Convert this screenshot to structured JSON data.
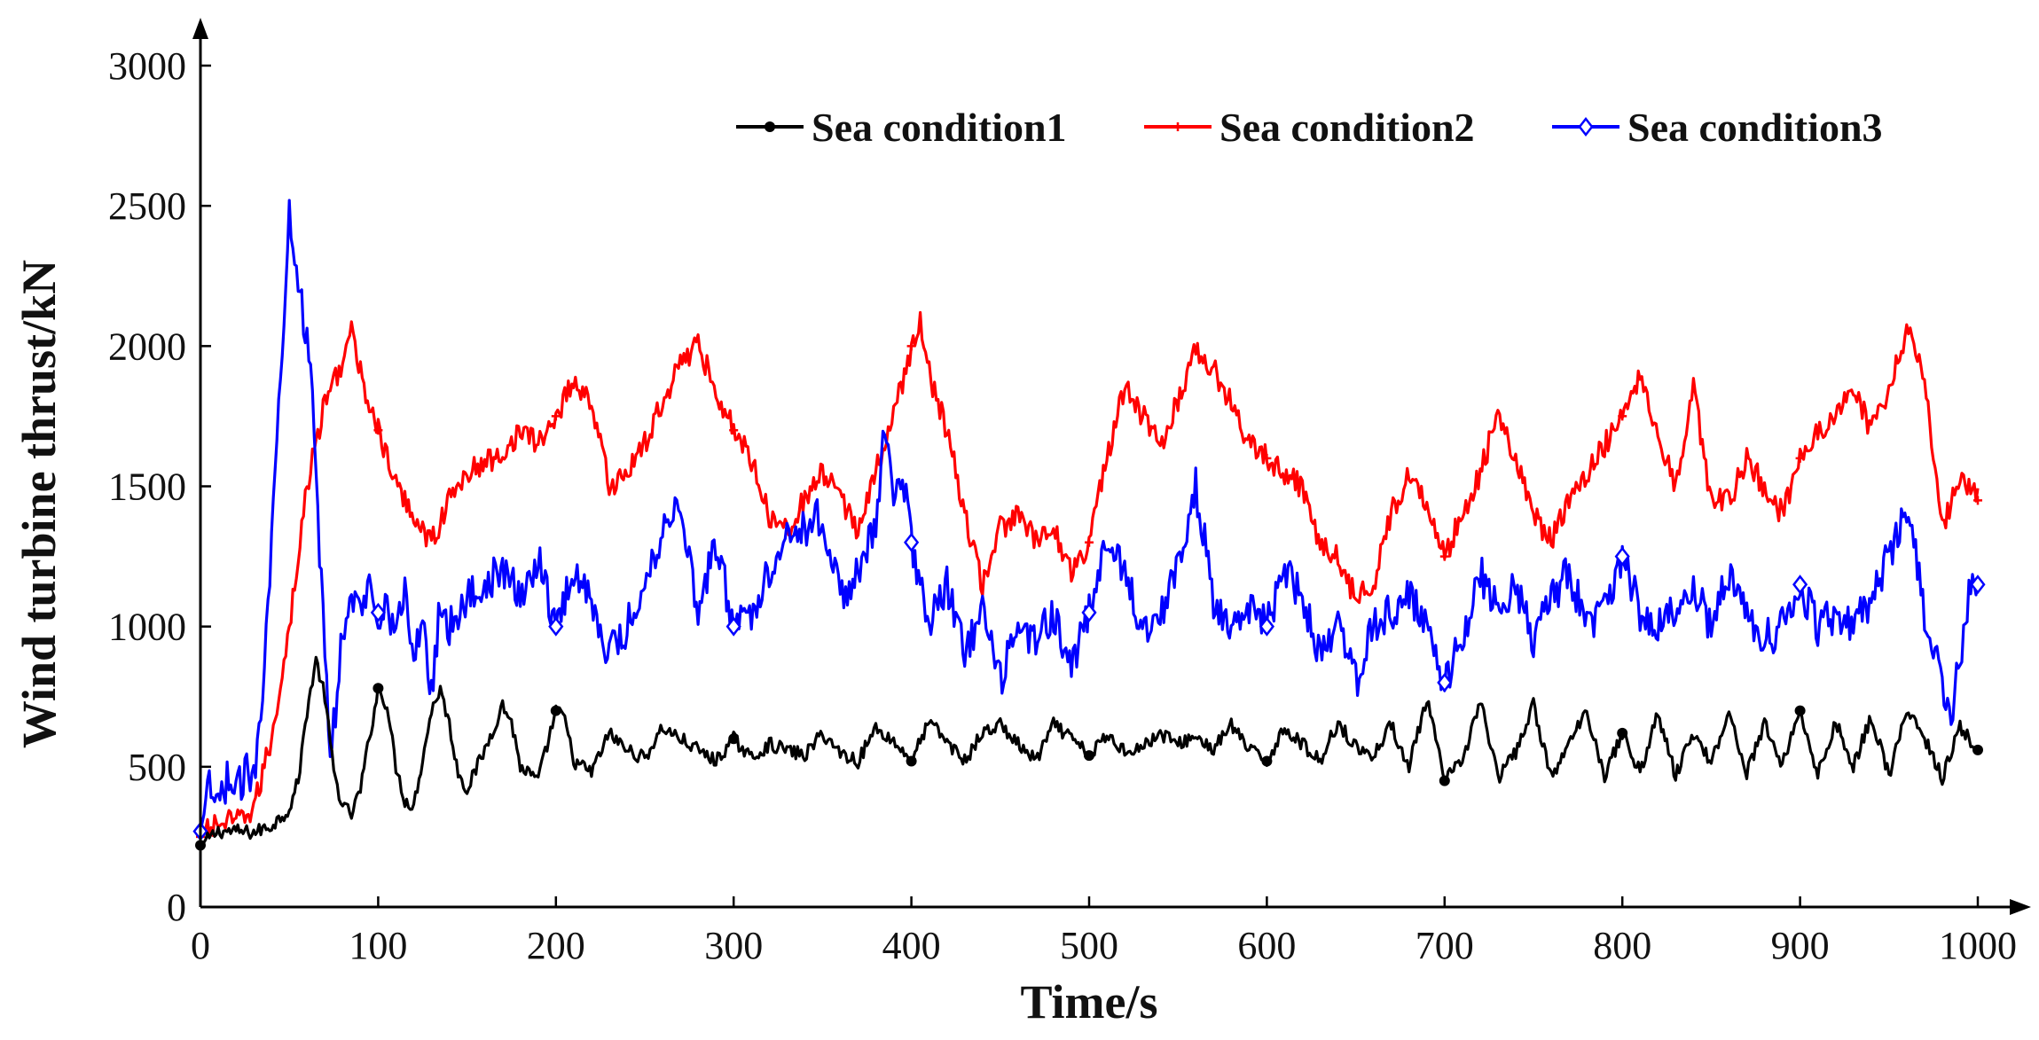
{
  "chart_data": {
    "type": "line",
    "title": "",
    "xlabel": "Time/s",
    "ylabel": "Wind turbine thrust/kN",
    "xlim": [
      0,
      1000
    ],
    "ylim": [
      0,
      3000
    ],
    "x_ticks": [
      0,
      100,
      200,
      300,
      400,
      500,
      600,
      700,
      800,
      900,
      1000
    ],
    "y_ticks": [
      0,
      500,
      1000,
      1500,
      2000,
      2500,
      3000
    ],
    "grid": false,
    "legend_position": "top-right",
    "series": [
      {
        "name": "Sea condition1",
        "color": "#000000",
        "marker": "circle",
        "noise": 25,
        "x": [
          0,
          10,
          20,
          30,
          40,
          50,
          55,
          60,
          65,
          70,
          75,
          80,
          85,
          90,
          100,
          105,
          110,
          115,
          120,
          130,
          135,
          140,
          145,
          150,
          160,
          170,
          175,
          180,
          190,
          200,
          205,
          210,
          220,
          230,
          240,
          250,
          260,
          270,
          280,
          290,
          300,
          310,
          320,
          330,
          340,
          350,
          360,
          370,
          380,
          390,
          400,
          410,
          420,
          430,
          440,
          450,
          460,
          470,
          480,
          490,
          500,
          510,
          520,
          530,
          540,
          550,
          560,
          570,
          580,
          590,
          600,
          610,
          620,
          630,
          640,
          650,
          660,
          670,
          680,
          690,
          700,
          710,
          720,
          730,
          740,
          750,
          760,
          770,
          780,
          790,
          800,
          810,
          820,
          830,
          840,
          850,
          860,
          870,
          880,
          890,
          900,
          910,
          920,
          930,
          940,
          950,
          960,
          970,
          980,
          990,
          1000
        ],
        "y": [
          220,
          270,
          270,
          265,
          290,
          350,
          450,
          700,
          880,
          750,
          480,
          360,
          330,
          420,
          780,
          720,
          500,
          380,
          360,
          700,
          780,
          650,
          480,
          420,
          560,
          720,
          660,
          500,
          450,
          700,
          670,
          520,
          480,
          620,
          560,
          530,
          640,
          600,
          560,
          520,
          600,
          530,
          580,
          560,
          540,
          620,
          550,
          520,
          640,
          590,
          520,
          660,
          590,
          520,
          620,
          650,
          580,
          520,
          650,
          600,
          540,
          610,
          560,
          570,
          620,
          580,
          610,
          560,
          650,
          560,
          520,
          640,
          580,
          520,
          660,
          570,
          540,
          650,
          500,
          740,
          450,
          520,
          740,
          460,
          550,
          720,
          460,
          580,
          700,
          470,
          620,
          480,
          690,
          470,
          620,
          520,
          690,
          480,
          650,
          510,
          700,
          470,
          660,
          500,
          680,
          470,
          700,
          600,
          460,
          640,
          560
        ]
      },
      {
        "name": "Sea condition2",
        "color": "#ff0000",
        "marker": "plus",
        "noise": 45,
        "x": [
          0,
          10,
          20,
          30,
          40,
          50,
          60,
          70,
          80,
          85,
          90,
          100,
          110,
          120,
          130,
          140,
          150,
          160,
          170,
          180,
          190,
          200,
          210,
          220,
          230,
          240,
          250,
          260,
          270,
          280,
          290,
          300,
          310,
          320,
          330,
          340,
          350,
          360,
          370,
          380,
          390,
          400,
          405,
          410,
          420,
          430,
          440,
          450,
          460,
          470,
          480,
          490,
          500,
          510,
          520,
          530,
          540,
          550,
          560,
          570,
          580,
          590,
          600,
          610,
          620,
          630,
          640,
          650,
          660,
          670,
          680,
          690,
          700,
          710,
          720,
          730,
          740,
          750,
          760,
          770,
          780,
          790,
          800,
          810,
          820,
          830,
          840,
          850,
          860,
          870,
          880,
          890,
          900,
          910,
          920,
          930,
          940,
          950,
          960,
          970,
          980,
          990,
          1000
        ],
        "y": [
          250,
          300,
          300,
          350,
          600,
          1000,
          1500,
          1800,
          1950,
          2050,
          1900,
          1700,
          1500,
          1400,
          1300,
          1450,
          1550,
          1580,
          1620,
          1700,
          1650,
          1750,
          1880,
          1800,
          1500,
          1550,
          1650,
          1800,
          1950,
          2000,
          1850,
          1700,
          1600,
          1400,
          1350,
          1450,
          1550,
          1450,
          1350,
          1550,
          1750,
          2000,
          2080,
          1900,
          1700,
          1400,
          1150,
          1350,
          1400,
          1300,
          1350,
          1200,
          1300,
          1600,
          1850,
          1750,
          1650,
          1800,
          2000,
          1920,
          1800,
          1650,
          1600,
          1550,
          1500,
          1300,
          1250,
          1100,
          1150,
          1400,
          1550,
          1450,
          1250,
          1400,
          1550,
          1750,
          1600,
          1400,
          1300,
          1450,
          1550,
          1650,
          1750,
          1900,
          1700,
          1500,
          1850,
          1450,
          1450,
          1600,
          1500,
          1400,
          1600,
          1700,
          1750,
          1850,
          1700,
          1850,
          2050,
          1900,
          1350,
          1550,
          1450
        ]
      },
      {
        "name": "Sea condition3",
        "color": "#0000ff",
        "marker": "diamond",
        "noise": 70,
        "x": [
          0,
          5,
          10,
          15,
          20,
          25,
          30,
          35,
          40,
          45,
          50,
          55,
          60,
          63,
          66,
          70,
          73,
          76,
          80,
          85,
          90,
          95,
          100,
          105,
          110,
          115,
          120,
          125,
          130,
          135,
          140,
          150,
          160,
          170,
          180,
          190,
          200,
          210,
          220,
          230,
          240,
          250,
          260,
          270,
          280,
          290,
          300,
          310,
          320,
          330,
          340,
          350,
          360,
          370,
          380,
          385,
          390,
          395,
          400,
          410,
          420,
          430,
          440,
          450,
          460,
          470,
          480,
          490,
          500,
          510,
          520,
          530,
          540,
          550,
          560,
          570,
          580,
          590,
          600,
          610,
          620,
          630,
          640,
          650,
          660,
          670,
          680,
          690,
          700,
          710,
          720,
          730,
          740,
          750,
          760,
          770,
          780,
          790,
          800,
          810,
          820,
          830,
          840,
          850,
          860,
          870,
          880,
          890,
          900,
          910,
          920,
          930,
          940,
          950,
          960,
          965,
          970,
          975,
          980,
          985,
          990,
          995,
          1000
        ],
        "y": [
          270,
          420,
          350,
          460,
          400,
          480,
          460,
          800,
          1300,
          1900,
          2500,
          2250,
          2000,
          1800,
          1400,
          900,
          550,
          700,
          1000,
          1100,
          1050,
          1150,
          1050,
          1100,
          950,
          1150,
          850,
          1050,
          750,
          1100,
          1000,
          1100,
          1150,
          1200,
          1100,
          1250,
          1000,
          1200,
          1100,
          900,
          1000,
          1150,
          1350,
          1450,
          1050,
          1300,
          1000,
          1050,
          1200,
          1350,
          1350,
          1400,
          1100,
          1200,
          1350,
          1700,
          1500,
          1550,
          1300,
          1000,
          1150,
          900,
          1050,
          800,
          1000,
          950,
          1050,
          850,
          1050,
          1300,
          1200,
          1000,
          1050,
          1200,
          1500,
          1100,
          1000,
          1050,
          1000,
          1200,
          1100,
          900,
          1000,
          800,
          1000,
          1050,
          1100,
          1000,
          800,
          950,
          1200,
          1050,
          1150,
          950,
          1100,
          1200,
          1000,
          1050,
          1250,
          1050,
          1000,
          1050,
          1150,
          1000,
          1200,
          1050,
          950,
          1000,
          1150,
          1000,
          1050,
          1000,
          1100,
          1250,
          1400,
          1250,
          1050,
          900,
          800,
          650,
          900,
          1100,
          1150
        ]
      }
    ]
  }
}
